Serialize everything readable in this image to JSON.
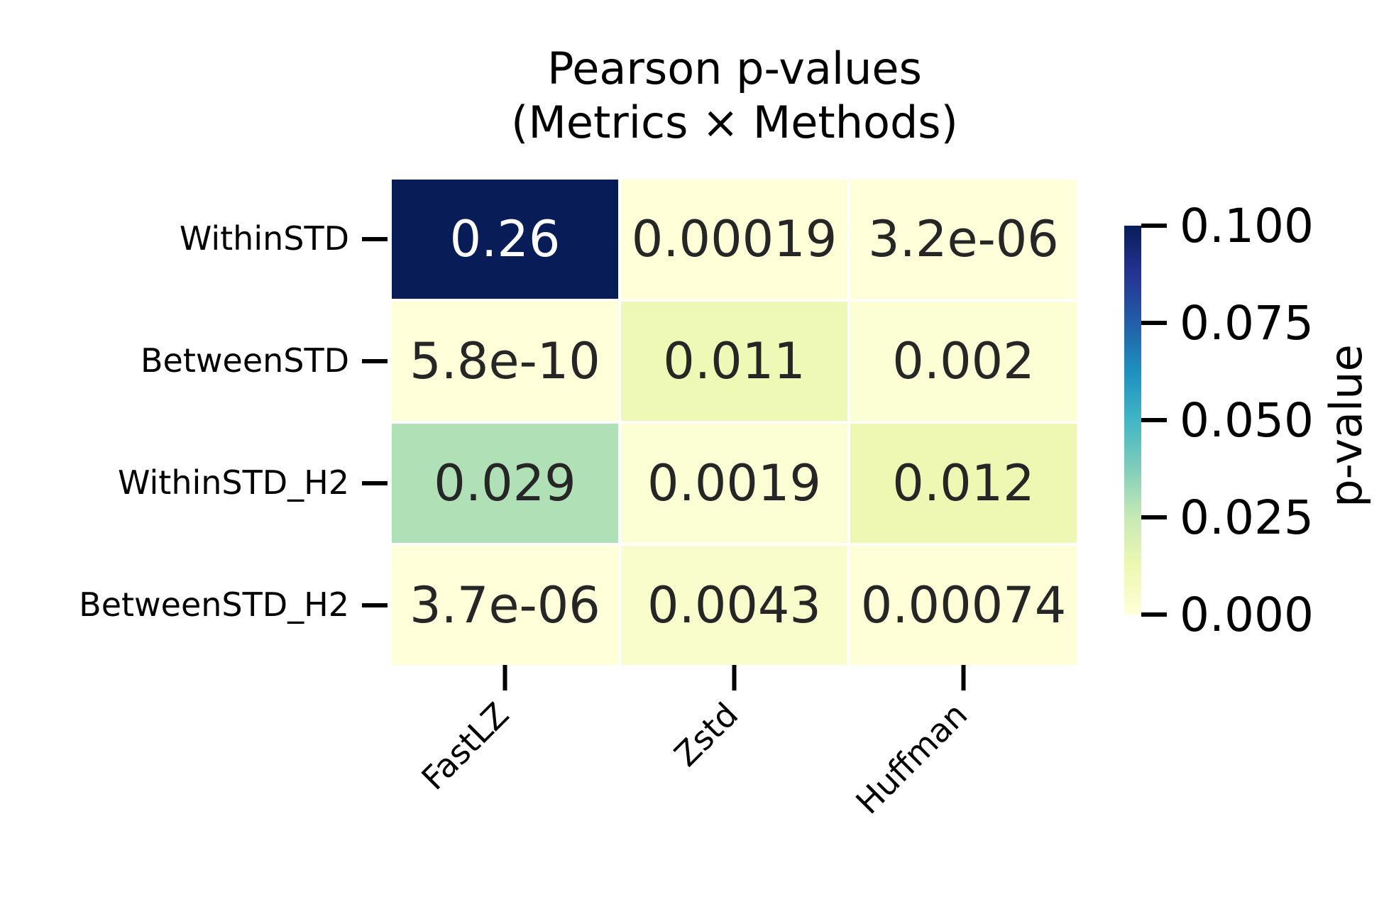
{
  "chart_data": {
    "type": "heatmap",
    "title": "Pearson p-values\n(Metrics × Methods)",
    "title_lines": [
      "Pearson p-values",
      "(Metrics × Methods)"
    ],
    "xlabel": "",
    "ylabel": "",
    "rows": [
      "WithinSTD",
      "BetweenSTD",
      "WithinSTD_H2",
      "BetweenSTD_H2"
    ],
    "columns": [
      "FastLZ",
      "Zstd",
      "Huffman"
    ],
    "values": [
      [
        0.26,
        0.00019,
        3.2e-06
      ],
      [
        5.8e-10,
        0.011,
        0.002
      ],
      [
        0.029,
        0.0019,
        0.012
      ],
      [
        3.7e-06,
        0.0043,
        0.00074
      ]
    ],
    "annotations": [
      [
        "0.26",
        "0.00019",
        "3.2e-06"
      ],
      [
        "5.8e-10",
        "0.011",
        "0.002"
      ],
      [
        "0.029",
        "0.0019",
        "0.012"
      ],
      [
        "3.7e-06",
        "0.0043",
        "0.00074"
      ]
    ],
    "colormap": "YlGnBu",
    "vmin": 0.0,
    "vmax": 0.1,
    "colorbar": {
      "label": "p-value",
      "ticks": [
        0.0,
        0.025,
        0.05,
        0.075,
        0.1
      ],
      "tick_labels": [
        "0.000",
        "0.025",
        "0.050",
        "0.075",
        "0.100"
      ],
      "placement": "right"
    },
    "x_tick_rotation_deg": 45,
    "grid": false,
    "cell_border_color": "#ffffff",
    "annotation_dark_color": "#262626",
    "annotation_light_color": "#ffffff"
  }
}
